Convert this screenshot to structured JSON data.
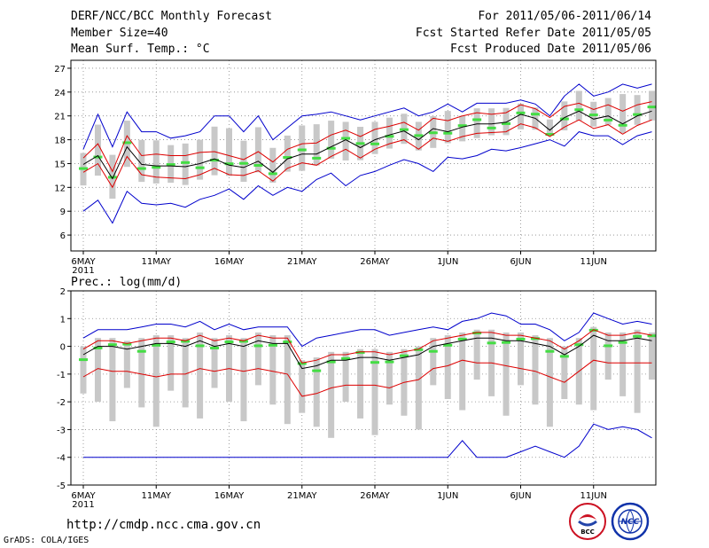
{
  "header": {
    "title": "DERF/NCC/BCC Monthly Forecast",
    "member_size": "Member Size=40",
    "variable": "Mean Surf. Temp.: °C",
    "period": "For 2011/05/06-2011/06/14",
    "started": "Fcst Started Refer Date 2011/05/05",
    "produced": "Fcst Produced Date 2011/05/06"
  },
  "footer": {
    "url": "http://cmdp.ncc.cma.gov.cn",
    "credit": "GrADS: COLA/IGES",
    "logo_bcc": "BCC",
    "logo_ncc": "NCC"
  },
  "colors": {
    "box": "#c8c8c8",
    "median": "#44dd44",
    "mean": "#000000",
    "spread": "#dd0000",
    "extreme": "#0000cc",
    "grid": "#888888"
  },
  "chart_data": [
    {
      "type": "line",
      "title": "Mean Surf. Temp.: °C",
      "ylim": [
        4,
        28
      ],
      "yticks": [
        6,
        9,
        12,
        15,
        18,
        21,
        24,
        27
      ],
      "xticks": [
        "6MAY",
        "11MAY",
        "16MAY",
        "21MAY",
        "26MAY",
        "1JUN",
        "6JUN",
        "11JUN"
      ],
      "xyear": "2011",
      "days": 40,
      "series": [
        {
          "name": "max",
          "values": [
            9.0,
            10.4,
            7.5,
            11.5,
            10.0,
            9.8,
            10.0,
            9.5,
            10.5,
            11.0,
            11.8,
            10.5,
            12.2,
            11.0,
            12.0,
            11.5,
            13.0,
            13.8,
            12.2,
            13.5,
            14.0,
            14.8,
            15.5,
            15.0,
            14.0,
            15.8,
            15.6,
            16.0,
            16.8,
            16.6,
            17.0,
            17.5,
            18.0,
            17.2,
            19.0,
            18.5,
            18.5,
            17.4,
            18.5,
            19.0
          ]
        },
        {
          "name": "min",
          "values": [
            16.8,
            21.2,
            17.1,
            21.5,
            19.0,
            19.0,
            18.2,
            18.5,
            19.0,
            21.0,
            21.0,
            19.0,
            21.0,
            18.0,
            19.5,
            21.0,
            21.2,
            21.5,
            21.0,
            20.5,
            21.0,
            21.5,
            22.0,
            21.0,
            21.5,
            22.5,
            21.5,
            22.6,
            22.6,
            22.6,
            23.0,
            22.5,
            21.0,
            23.5,
            25.0,
            23.5,
            24.0,
            25.0,
            24.5,
            25.0
          ]
        },
        {
          "name": "mean",
          "values": [
            14.9,
            16.0,
            13.1,
            17.1,
            14.9,
            14.7,
            14.7,
            14.6,
            15.0,
            15.6,
            14.8,
            14.5,
            15.3,
            13.9,
            15.6,
            16.2,
            16.2,
            17.1,
            18.0,
            17.0,
            18.0,
            18.6,
            19.1,
            18.0,
            19.4,
            19.0,
            19.6,
            20.0,
            20.0,
            20.2,
            21.2,
            20.7,
            19.2,
            20.8,
            21.6,
            20.6,
            21.0,
            20.0,
            21.0,
            21.6
          ]
        },
        {
          "name": "upper",
          "values": [
            15.7,
            17.5,
            14.0,
            18.5,
            16.0,
            16.2,
            16.0,
            16.0,
            16.4,
            16.5,
            16.0,
            15.5,
            16.5,
            15.2,
            16.8,
            17.5,
            17.6,
            18.6,
            19.2,
            18.4,
            19.3,
            19.7,
            20.2,
            19.2,
            20.7,
            20.4,
            21.0,
            21.4,
            21.2,
            21.4,
            22.4,
            21.9,
            20.8,
            22.2,
            22.6,
            21.8,
            22.4,
            21.6,
            22.4,
            22.8
          ]
        },
        {
          "name": "lower",
          "values": [
            13.9,
            15.0,
            12.0,
            15.9,
            13.6,
            13.3,
            13.2,
            13.1,
            13.6,
            14.4,
            13.6,
            13.5,
            14.1,
            12.8,
            14.4,
            15.1,
            14.8,
            15.9,
            16.8,
            15.7,
            16.8,
            17.5,
            18.0,
            16.8,
            18.2,
            17.8,
            18.4,
            18.8,
            18.9,
            19.0,
            20.0,
            19.5,
            18.4,
            19.6,
            20.5,
            19.4,
            19.9,
            18.7,
            19.8,
            20.5
          ]
        }
      ]
    },
    {
      "type": "line",
      "title": "Prec.: log(mm/d)",
      "ylim": [
        -5,
        2
      ],
      "yticks": [
        -5,
        -4,
        -3,
        -2,
        -1,
        0,
        1,
        2
      ],
      "xticks": [
        "6MAY",
        "11MAY",
        "16MAY",
        "21MAY",
        "26MAY",
        "1JUN",
        "6JUN",
        "11JUN"
      ],
      "xyear": "2011",
      "days": 40,
      "series": [
        {
          "name": "max",
          "values": [
            0.3,
            0.6,
            0.6,
            0.6,
            0.7,
            0.8,
            0.8,
            0.7,
            0.9,
            0.6,
            0.8,
            0.6,
            0.7,
            0.7,
            0.7,
            0.0,
            0.3,
            0.4,
            0.5,
            0.6,
            0.6,
            0.4,
            0.5,
            0.6,
            0.7,
            0.6,
            0.9,
            1.0,
            1.2,
            1.1,
            0.8,
            0.8,
            0.6,
            0.2,
            0.5,
            1.2,
            1.0,
            0.8,
            0.9,
            0.8
          ]
        },
        {
          "name": "min",
          "values": [
            -4.0,
            -4.0,
            -4.0,
            -4.0,
            -4.0,
            -4.0,
            -4.0,
            -4.0,
            -4.0,
            -4.0,
            -4.0,
            -4.0,
            -4.0,
            -4.0,
            -4.0,
            -4.0,
            -4.0,
            -4.0,
            -4.0,
            -4.0,
            -4.0,
            -4.0,
            -4.0,
            -4.0,
            -4.0,
            -4.0,
            -3.4,
            -4.0,
            -4.0,
            -4.0,
            -3.8,
            -3.6,
            -3.8,
            -4.0,
            -3.6,
            -2.8,
            -3.0,
            -2.9,
            -3.0,
            -3.3
          ]
        },
        {
          "name": "mean",
          "values": [
            -0.3,
            0.0,
            0.0,
            -0.1,
            0.0,
            0.1,
            0.1,
            0.0,
            0.2,
            0.0,
            0.1,
            0.0,
            0.2,
            0.1,
            0.1,
            -0.8,
            -0.7,
            -0.5,
            -0.5,
            -0.4,
            -0.4,
            -0.5,
            -0.4,
            -0.3,
            0.0,
            0.1,
            0.2,
            0.3,
            0.3,
            0.2,
            0.2,
            0.1,
            0.0,
            -0.3,
            0.0,
            0.4,
            0.2,
            0.2,
            0.3,
            0.2
          ]
        },
        {
          "name": "upper",
          "values": [
            -0.1,
            0.2,
            0.2,
            0.1,
            0.2,
            0.3,
            0.3,
            0.2,
            0.4,
            0.2,
            0.3,
            0.2,
            0.4,
            0.3,
            0.3,
            -0.6,
            -0.5,
            -0.3,
            -0.3,
            -0.2,
            -0.2,
            -0.3,
            -0.2,
            -0.1,
            0.2,
            0.3,
            0.4,
            0.5,
            0.5,
            0.4,
            0.4,
            0.3,
            0.2,
            -0.1,
            0.2,
            0.6,
            0.4,
            0.4,
            0.5,
            0.4
          ]
        },
        {
          "name": "lower",
          "values": [
            -1.1,
            -0.8,
            -0.9,
            -0.9,
            -1.0,
            -1.1,
            -1.0,
            -1.0,
            -0.8,
            -0.9,
            -0.8,
            -0.9,
            -0.8,
            -0.9,
            -1.0,
            -1.8,
            -1.7,
            -1.5,
            -1.4,
            -1.4,
            -1.4,
            -1.5,
            -1.3,
            -1.2,
            -0.8,
            -0.7,
            -0.5,
            -0.6,
            -0.6,
            -0.7,
            -0.8,
            -0.9,
            -1.1,
            -1.3,
            -0.9,
            -0.5,
            -0.6,
            -0.6,
            -0.6,
            -0.6
          ]
        }
      ]
    }
  ]
}
